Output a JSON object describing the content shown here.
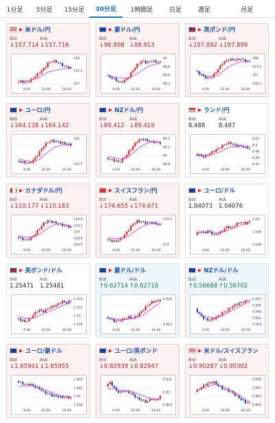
{
  "timeframe_tabs": [
    {
      "label": "1分足"
    },
    {
      "label": "5分足"
    },
    {
      "label": "15分足"
    },
    {
      "label": "30分足",
      "active": true
    },
    {
      "label": "1時間足"
    },
    {
      "label": "日足"
    },
    {
      "label": "週足"
    },
    {
      "label": "月足"
    }
  ],
  "bid_label": "Bid",
  "ask_label": "Ask",
  "pairs": [
    {
      "name": "米ドル/円",
      "bid": "157.714",
      "ask": "157.716",
      "direction": "down",
      "flag": "us",
      "axis": [
        "158",
        "157.5",
        "157"
      ],
      "x": [
        "4:00",
        "10:00",
        "16:00"
      ],
      "chart_data": {
        "type": "candlestick",
        "ylim": [
          156.9,
          158.3
        ],
        "trend": [
          157.0,
          157.05,
          157.0,
          157.1,
          157.3,
          157.5,
          157.7,
          158.0,
          158.1,
          158.05,
          157.9,
          157.8,
          157.75
        ],
        "ma": [
          157.1,
          157.1,
          157.1,
          157.15,
          157.2,
          157.3,
          157.45,
          157.55,
          157.6,
          157.65,
          157.7,
          157.72,
          157.72
        ]
      }
    },
    {
      "name": "豪ドル/円",
      "bid": "98.908",
      "ask": "98.913",
      "direction": "down",
      "flag": "au",
      "axis": [
        "99",
        "98.8",
        "98.6",
        "98.4"
      ],
      "x": [
        "4:00",
        "10:00",
        "16:00"
      ],
      "chart_data": {
        "type": "candlestick",
        "ylim": [
          98.3,
          99.05
        ],
        "trend": [
          98.55,
          98.5,
          98.45,
          98.35,
          98.4,
          98.5,
          98.7,
          98.85,
          98.95,
          98.9,
          98.95,
          98.92,
          98.91
        ],
        "ma": [
          98.55,
          98.52,
          98.5,
          98.48,
          98.47,
          98.5,
          98.55,
          98.62,
          98.7,
          98.78,
          98.83,
          98.86,
          98.88
        ]
      }
    },
    {
      "name": "英ポンド/円",
      "bid": "197.892",
      "ask": "197.899",
      "direction": "down",
      "flag": "gb",
      "axis": [
        "198",
        "197.5",
        "197",
        "196.5"
      ],
      "x": [
        "4:00",
        "10:00",
        "16:00"
      ],
      "chart_data": {
        "type": "candlestick",
        "ylim": [
          196.4,
          198.2
        ],
        "trend": [
          197.3,
          197.1,
          196.9,
          196.8,
          197.0,
          197.4,
          197.8,
          198.0,
          198.05,
          198.0,
          198.1,
          197.95,
          197.9
        ],
        "ma": [
          197.2,
          197.1,
          197.0,
          196.95,
          196.95,
          197.05,
          197.3,
          197.5,
          197.7,
          197.8,
          197.9,
          197.92,
          197.9
        ]
      }
    },
    {
      "name": "ユーロ/円",
      "bid": "164.138",
      "ask": "164.142",
      "direction": "down",
      "flag": "eu",
      "axis": [
        "164",
        "163.5"
      ],
      "x": [
        "4:00",
        "10:00",
        "16:00"
      ],
      "chart_data": {
        "type": "candlestick",
        "ylim": [
          163.2,
          164.5
        ],
        "trend": [
          163.4,
          163.35,
          163.3,
          163.3,
          163.5,
          163.8,
          164.1,
          164.3,
          164.35,
          164.3,
          164.25,
          164.2,
          164.14
        ],
        "ma": [
          163.5,
          163.45,
          163.4,
          163.38,
          163.4,
          163.5,
          163.7,
          163.85,
          164.0,
          164.1,
          164.15,
          164.17,
          164.15
        ]
      }
    },
    {
      "name": "NZドル/円",
      "bid": "89.412",
      "ask": "89.419",
      "direction": "down",
      "flag": "nz",
      "axis": [
        "89.4",
        "89.2",
        "89",
        "88.8"
      ],
      "x": [
        "4:00",
        "10:00",
        "16:00"
      ],
      "chart_data": {
        "type": "candlestick",
        "ylim": [
          88.65,
          89.6
        ],
        "trend": [
          88.9,
          88.85,
          88.8,
          88.75,
          88.9,
          89.1,
          89.3,
          89.5,
          89.55,
          89.5,
          89.45,
          89.45,
          89.41
        ],
        "ma": [
          88.95,
          88.92,
          88.88,
          88.85,
          88.88,
          88.97,
          89.1,
          89.22,
          89.33,
          89.4,
          89.45,
          89.46,
          89.44
        ]
      }
    },
    {
      "name": "ランド/円",
      "bid": "8.488",
      "ask": "8.497",
      "direction": "neutral",
      "flag": "za",
      "axis": [
        "8.52",
        "8.5",
        "8.48",
        "8.46",
        "8.44"
      ],
      "x": [
        "4:00",
        "10:00",
        "16:00"
      ],
      "chart_data": {
        "type": "candlestick",
        "ylim": [
          8.43,
          8.53
        ],
        "trend": [
          8.47,
          8.465,
          8.46,
          8.47,
          8.48,
          8.49,
          8.5,
          8.51,
          8.51,
          8.5,
          8.5,
          8.495,
          8.49
        ],
        "ma": [
          8.47,
          8.468,
          8.466,
          8.467,
          8.47,
          8.476,
          8.484,
          8.492,
          8.498,
          8.5,
          8.5,
          8.498,
          8.495
        ]
      }
    },
    {
      "name": "カナダドル/円",
      "bid": "110.177",
      "ask": "110.183",
      "direction": "down",
      "flag": "ca",
      "axis": [
        "110.4",
        "110.2",
        "110",
        "109.8",
        "109.6"
      ],
      "x": [
        "4:00",
        "10:00",
        "16:00"
      ],
      "chart_data": {
        "type": "candlestick",
        "ylim": [
          109.5,
          110.5
        ],
        "trend": [
          109.8,
          109.75,
          109.7,
          109.75,
          109.9,
          110.1,
          110.3,
          110.4,
          110.35,
          110.3,
          110.25,
          110.2,
          110.18
        ],
        "ma": [
          109.85,
          109.82,
          109.8,
          109.8,
          109.84,
          109.93,
          110.05,
          110.16,
          110.24,
          110.28,
          110.28,
          110.25,
          110.22
        ]
      }
    },
    {
      "name": "スイスフラン/円",
      "bid": "174.655",
      "ask": "174.671",
      "direction": "down",
      "flag": "ch",
      "axis": [
        "174.5",
        "174"
      ],
      "x": [
        "4:00",
        "10:00",
        "16:00"
      ],
      "chart_data": {
        "type": "candlestick",
        "ylim": [
          173.6,
          175.0
        ],
        "trend": [
          173.9,
          173.85,
          173.8,
          173.9,
          174.1,
          174.4,
          174.7,
          174.85,
          174.8,
          174.75,
          174.8,
          174.7,
          174.66
        ],
        "ma": [
          174.0,
          173.97,
          173.95,
          173.95,
          174.0,
          174.12,
          174.3,
          174.45,
          174.58,
          174.67,
          174.72,
          174.72,
          174.7
        ]
      }
    },
    {
      "name": "ユーロ/ドル",
      "bid": "1.04073",
      "ask": "1.04076",
      "direction": "neutral",
      "flag": "eu",
      "axis": [
        "1.04",
        "1.038",
        "1.036"
      ],
      "x": [
        "4:00",
        "10:00",
        "16:00"
      ],
      "chart_data": {
        "type": "candlestick",
        "ylim": [
          1.035,
          1.0415
        ],
        "trend": [
          1.0375,
          1.0385,
          1.038,
          1.0385,
          1.0375,
          1.0378,
          1.0385,
          1.0395,
          1.0392,
          1.04,
          1.0405,
          1.0402,
          1.0407
        ],
        "ma": [
          1.0378,
          1.038,
          1.0381,
          1.0382,
          1.0381,
          1.038,
          1.0382,
          1.0386,
          1.039,
          1.0394,
          1.0398,
          1.0401,
          1.0404
        ]
      }
    },
    {
      "name": "英ポンド/ドル",
      "bid": "1.25471",
      "ask": "1.25481",
      "direction": "neutral",
      "flag": "gb",
      "axis": [
        "1.254",
        "1.252",
        "1.25",
        "1.248"
      ],
      "x": [
        "4:00",
        "10:00",
        "16:00"
      ],
      "chart_data": {
        "type": "candlestick",
        "ylim": [
          1.2475,
          1.2555
        ],
        "trend": [
          1.2495,
          1.249,
          1.2485,
          1.2495,
          1.251,
          1.252,
          1.2515,
          1.2525,
          1.253,
          1.2535,
          1.2545,
          1.254,
          1.2547
        ],
        "ma": [
          1.25,
          1.2497,
          1.2495,
          1.2495,
          1.2499,
          1.2505,
          1.251,
          1.2515,
          1.252,
          1.2526,
          1.2532,
          1.2537,
          1.2541
        ]
      }
    },
    {
      "name": "豪ドル/ドル",
      "bid": "0.62714",
      "ask": "0.62718",
      "direction": "up",
      "flag": "au",
      "axis": [
        "0.626",
        "0.624"
      ],
      "x": [
        "4:00",
        "10:00",
        "16:00"
      ],
      "chart_data": {
        "type": "candlestick",
        "ylim": [
          0.6232,
          0.6275
        ],
        "trend": [
          0.6245,
          0.6242,
          0.6238,
          0.624,
          0.6242,
          0.6245,
          0.6243,
          0.6248,
          0.6255,
          0.6262,
          0.6268,
          0.627,
          0.6271
        ],
        "ma": [
          0.6244,
          0.6243,
          0.6242,
          0.6241,
          0.6241,
          0.6242,
          0.6243,
          0.6245,
          0.6248,
          0.6253,
          0.6258,
          0.6263,
          0.6267
        ]
      }
    },
    {
      "name": "NZドル/ドル",
      "bid": "0.56688",
      "ask": "0.56702",
      "direction": "up",
      "flag": "nz",
      "axis": [
        "0.567",
        "0.566",
        "0.565",
        "0.564",
        "0.563"
      ],
      "x": [
        "4:00",
        "10:00",
        "16:00"
      ],
      "chart_data": {
        "type": "candlestick",
        "ylim": [
          0.5627,
          0.5673
        ],
        "trend": [
          0.5655,
          0.5645,
          0.5638,
          0.5635,
          0.5638,
          0.5642,
          0.5648,
          0.5652,
          0.5658,
          0.5662,
          0.5665,
          0.5667,
          0.5669
        ],
        "ma": [
          0.5648,
          0.5645,
          0.5642,
          0.564,
          0.564,
          0.5641,
          0.5644,
          0.5648,
          0.5652,
          0.5656,
          0.566,
          0.5663,
          0.5666
        ]
      }
    },
    {
      "name": "ユーロ/豪ドル",
      "bid": "1.65941",
      "ask": "1.65955",
      "direction": "down",
      "flag": "eu",
      "axis": [
        "1.664",
        "1.662",
        "1.66",
        "1.658"
      ],
      "x": [
        "4:00",
        "10:00",
        "16:00"
      ],
      "chart_data": {
        "type": "candlestick",
        "ylim": [
          1.6572,
          1.6648
        ],
        "trend": [
          1.664,
          1.6635,
          1.663,
          1.6632,
          1.6625,
          1.662,
          1.661,
          1.6605,
          1.66,
          1.6598,
          1.6595,
          1.6596,
          1.6594
        ],
        "ma": [
          1.6625,
          1.6626,
          1.6627,
          1.6627,
          1.6625,
          1.6622,
          1.6617,
          1.6612,
          1.6607,
          1.6603,
          1.66,
          1.6598,
          1.6597
        ]
      }
    },
    {
      "name": "ユーロ/英ポンド",
      "bid": "0.82939",
      "ask": "0.82947",
      "direction": "down",
      "flag": "eu",
      "axis": [
        "0.831",
        "0.83",
        "0.829"
      ],
      "x": [
        "4:00",
        "10:00",
        "16:00"
      ],
      "chart_data": {
        "type": "candlestick",
        "ylim": [
          0.8284,
          0.8314
        ],
        "trend": [
          0.8305,
          0.831,
          0.8302,
          0.8298,
          0.8301,
          0.8299,
          0.8296,
          0.8292,
          0.829,
          0.8288,
          0.8292,
          0.829,
          0.8294
        ],
        "ma": [
          0.8302,
          0.8303,
          0.8302,
          0.8301,
          0.83,
          0.83,
          0.8299,
          0.8297,
          0.8295,
          0.8293,
          0.8292,
          0.8291,
          0.8292
        ]
      }
    },
    {
      "name": "米ドル/スイスフラン",
      "bid": "0.90287",
      "ask": "0.90302",
      "direction": "down",
      "flag": "us",
      "axis": [
        "0.906",
        "0.905",
        "0.904",
        "0.903"
      ],
      "x": [
        "4:00",
        "10:00",
        "16:00"
      ],
      "chart_data": {
        "type": "candlestick",
        "ylim": [
          0.9025,
          0.9065
        ],
        "trend": [
          0.9045,
          0.905,
          0.9055,
          0.9058,
          0.906,
          0.9055,
          0.905,
          0.9048,
          0.9045,
          0.904,
          0.9035,
          0.903,
          0.9029
        ],
        "ma": [
          0.9048,
          0.905,
          0.9052,
          0.9054,
          0.9056,
          0.9055,
          0.9053,
          0.905,
          0.9047,
          0.9043,
          0.9039,
          0.9034,
          0.9031
        ]
      }
    }
  ],
  "colors": {
    "down_text": "#b8272b",
    "up_text": "#1a7f3c",
    "link": "#1c52a8",
    "candle_up": "#d9252b",
    "candle_down": "#1c3fa8",
    "ma_line": "#d64bd6",
    "active_tab": "#1f6fb5"
  }
}
